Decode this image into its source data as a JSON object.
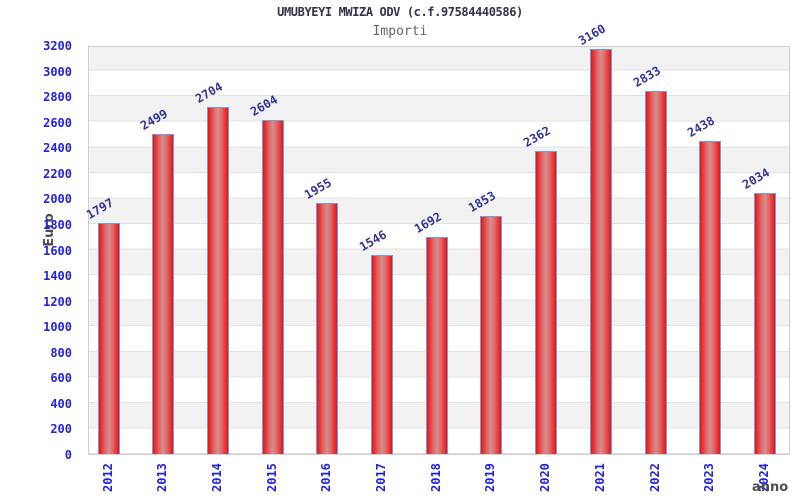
{
  "chart_data": {
    "type": "bar",
    "title": "UMUBYEYI MWIZA ODV (c.f.97584440586)",
    "subtitle": "Importi",
    "xlabel": "anno",
    "ylabel": "Euro",
    "categories": [
      "2012",
      "2013",
      "2014",
      "2015",
      "2016",
      "2017",
      "2018",
      "2019",
      "2020",
      "2021",
      "2022",
      "2023",
      "2024"
    ],
    "values": [
      1797,
      2499,
      2704,
      2604,
      1955,
      1546,
      1692,
      1853,
      2362,
      3160,
      2833,
      2438,
      2034
    ],
    "ylim": [
      0,
      3200
    ],
    "y_tick_step": 200,
    "y_ticks": [
      0,
      200,
      400,
      600,
      800,
      1000,
      1200,
      1400,
      1600,
      1800,
      2000,
      2200,
      2400,
      2600,
      2800,
      3000,
      3200
    ],
    "grid": true,
    "legend_position": "none",
    "colors": {
      "bar_fill_edge": "#ee1111",
      "bar_fill_center": "#d39090",
      "bar_border": "#64a2e2",
      "tick_label": "#2222dd",
      "value_label": "#333399",
      "band_stripe": "#f2f2f2",
      "grid_line": "#e2e2e2",
      "title": "#33334a",
      "subtitle": "#666666",
      "axis_title": "#4d4d4d"
    }
  }
}
